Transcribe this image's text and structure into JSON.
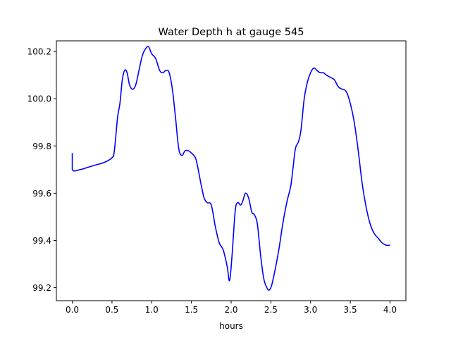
{
  "chart_data": {
    "type": "line",
    "title": "Water Depth h at gauge 545",
    "xlabel": "hours",
    "ylabel": "",
    "xlim": [
      -0.2,
      4.2
    ],
    "ylim": [
      99.145,
      100.245
    ],
    "xticks": [
      0.0,
      0.5,
      1.0,
      1.5,
      2.0,
      2.5,
      3.0,
      3.5,
      4.0
    ],
    "xtick_labels": [
      "0.0",
      "0.5",
      "1.0",
      "1.5",
      "2.0",
      "2.5",
      "3.0",
      "3.5",
      "4.0"
    ],
    "yticks": [
      99.2,
      99.4,
      99.6,
      99.8,
      100.0,
      100.2
    ],
    "ytick_labels": [
      "99.2",
      "99.4",
      "99.6",
      "99.8",
      "100.0",
      "100.2"
    ],
    "grid": false,
    "legend": "none",
    "series": [
      {
        "color": "#0000ff",
        "x": [
          0.0,
          0.0,
          0.1,
          0.2,
          0.3,
          0.4,
          0.5,
          0.53,
          0.57,
          0.6,
          0.63,
          0.66,
          0.69,
          0.72,
          0.76,
          0.8,
          0.84,
          0.88,
          0.92,
          0.96,
          1.0,
          1.05,
          1.1,
          1.14,
          1.18,
          1.22,
          1.26,
          1.3,
          1.34,
          1.38,
          1.42,
          1.46,
          1.5,
          1.55,
          1.58,
          1.62,
          1.66,
          1.7,
          1.75,
          1.8,
          1.85,
          1.9,
          1.95,
          1.98,
          2.01,
          2.05,
          2.08,
          2.12,
          2.15,
          2.18,
          2.22,
          2.26,
          2.29,
          2.33,
          2.37,
          2.41,
          2.45,
          2.48,
          2.51,
          2.55,
          2.6,
          2.65,
          2.7,
          2.75,
          2.78,
          2.81,
          2.85,
          2.88,
          2.92,
          2.96,
          3.0,
          3.04,
          3.08,
          3.12,
          3.16,
          3.2,
          3.25,
          3.3,
          3.35,
          3.4,
          3.45,
          3.5,
          3.55,
          3.6,
          3.65,
          3.7,
          3.75,
          3.8,
          3.85,
          3.9,
          3.95,
          4.0
        ],
        "y": [
          99.77,
          99.7,
          99.7,
          99.71,
          99.72,
          99.73,
          99.75,
          99.78,
          99.92,
          99.98,
          100.08,
          100.12,
          100.11,
          100.06,
          100.04,
          100.06,
          100.12,
          100.18,
          100.21,
          100.22,
          100.19,
          100.17,
          100.12,
          100.11,
          100.12,
          100.11,
          100.04,
          99.92,
          99.79,
          99.76,
          99.78,
          99.78,
          99.77,
          99.75,
          99.71,
          99.64,
          99.58,
          99.56,
          99.55,
          99.46,
          99.39,
          99.36,
          99.29,
          99.23,
          99.33,
          99.52,
          99.56,
          99.55,
          99.57,
          99.6,
          99.58,
          99.52,
          99.51,
          99.47,
          99.34,
          99.24,
          99.2,
          99.19,
          99.21,
          99.27,
          99.36,
          99.47,
          99.56,
          99.63,
          99.71,
          99.79,
          99.82,
          99.87,
          100.0,
          100.07,
          100.11,
          100.13,
          100.12,
          100.11,
          100.11,
          100.1,
          100.09,
          100.08,
          100.05,
          100.04,
          100.03,
          99.98,
          99.9,
          99.78,
          99.64,
          99.54,
          99.47,
          99.43,
          99.41,
          99.39,
          99.38,
          99.38
        ]
      }
    ]
  }
}
